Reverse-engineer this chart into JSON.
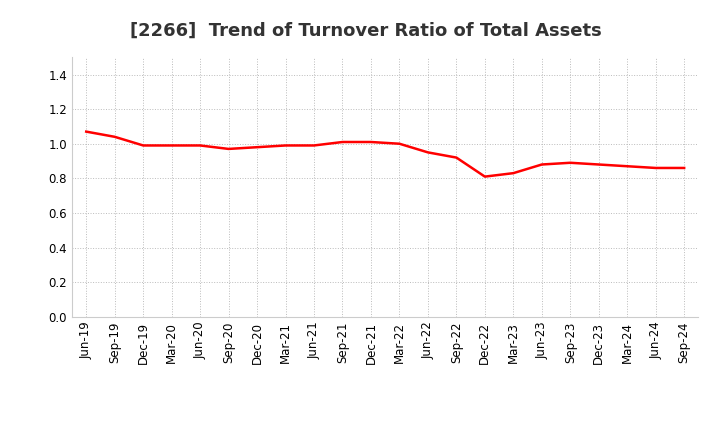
{
  "title": "[2266]  Trend of Turnover Ratio of Total Assets",
  "x_labels": [
    "Jun-19",
    "Sep-19",
    "Dec-19",
    "Mar-20",
    "Jun-20",
    "Sep-20",
    "Dec-20",
    "Mar-21",
    "Jun-21",
    "Sep-21",
    "Dec-21",
    "Mar-22",
    "Jun-22",
    "Sep-22",
    "Dec-22",
    "Mar-23",
    "Jun-23",
    "Sep-23",
    "Dec-23",
    "Mar-24",
    "Jun-24",
    "Sep-24"
  ],
  "y_values": [
    1.07,
    1.04,
    0.99,
    0.99,
    0.99,
    0.97,
    0.98,
    0.99,
    0.99,
    1.01,
    1.01,
    1.0,
    0.95,
    0.92,
    0.81,
    0.83,
    0.88,
    0.89,
    0.88,
    0.87,
    0.86,
    0.86
  ],
  "line_color": "#FF0000",
  "line_width": 1.8,
  "ylim": [
    0.0,
    1.5
  ],
  "yticks": [
    0.0,
    0.2,
    0.4,
    0.6,
    0.8,
    1.0,
    1.2,
    1.4
  ],
  "background_color": "#ffffff",
  "grid_color": "#bbbbbb",
  "title_fontsize": 13,
  "tick_fontsize": 8.5
}
